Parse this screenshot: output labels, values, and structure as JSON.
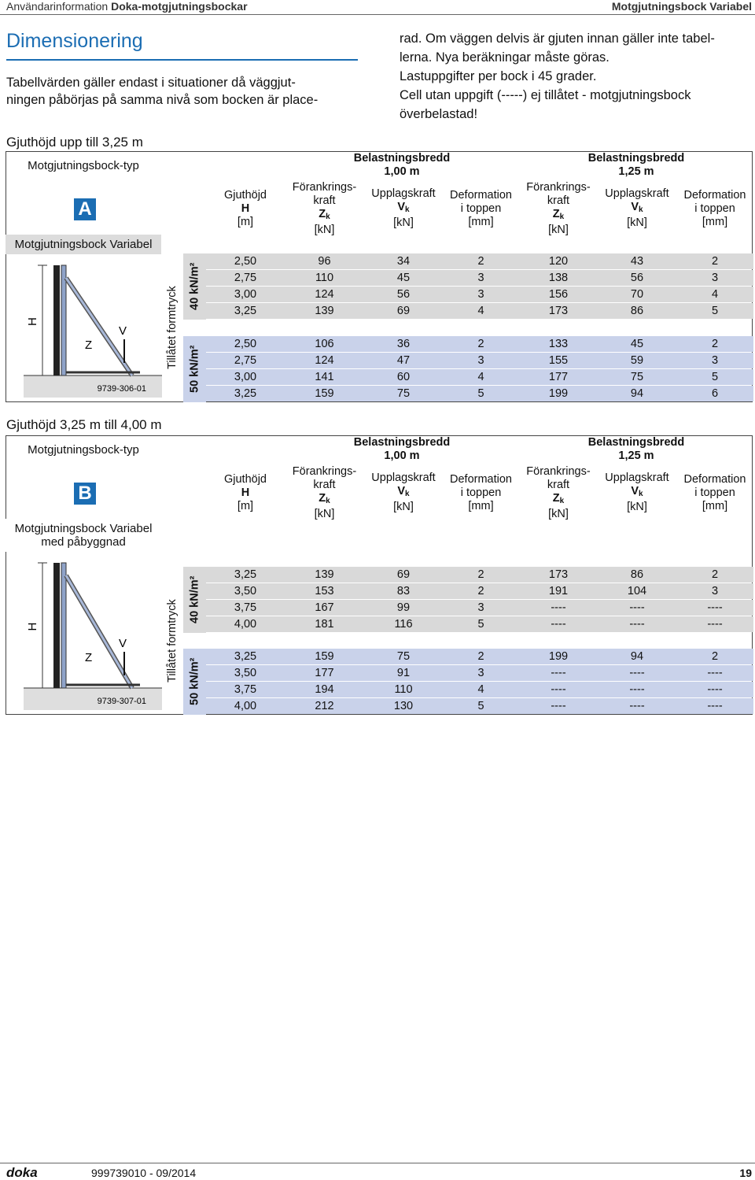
{
  "header": {
    "left_prefix": "Användarinformation",
    "left_bold": "Doka-motgjutningsbockar",
    "right": "Motgjutningsbock Variabel"
  },
  "title": "Dimensionering",
  "intro_left": [
    "Tabellvärden gäller endast i situationer då väggjut-",
    "ningen påbörjas på samma nivå som bocken är place-"
  ],
  "intro_right": [
    "rad. Om väggen delvis är gjuten innan gäller inte tabel-",
    "lerna. Nya beräkningar måste göras.",
    "Lastuppgifter per bock i 45 grader.",
    "Cell utan uppgift (-----) ej tillåtet - motgjutningsbock",
    "överbelastad!"
  ],
  "sections": [
    {
      "heading": "Gjuthöjd upp till 3,25 m",
      "type_label": "Motgjutningsbock-typ",
      "type_letter": "A",
      "type_name": [
        "Motgjutningsbock Variabel"
      ],
      "figure": {
        "h": "H",
        "z": "Z",
        "v": "V",
        "code": "9739-306-01"
      },
      "pressure_label": "Tillåtet formtryck",
      "height_header": [
        "Gjuthöjd",
        "H",
        "[m]"
      ],
      "widths": [
        {
          "label": "Belastningsbredd",
          "value": "1,00 m"
        },
        {
          "label": "Belastningsbredd",
          "value": "1,25 m"
        }
      ],
      "column_headers": [
        {
          "lines": [
            "Förankrings-",
            "kraft"
          ],
          "symbol": "Z",
          "sub": "k",
          "unit": "[kN]"
        },
        {
          "lines": [
            "Upplagskraft"
          ],
          "symbol": "V",
          "sub": "k",
          "unit": "[kN]"
        },
        {
          "lines": [
            "Deformation",
            "i toppen"
          ],
          "unit": "[mm]"
        }
      ],
      "groups": [
        {
          "pressure": "40 kN/m²",
          "rows": [
            [
              "2,50",
              "96",
              "34",
              "2",
              "120",
              "43",
              "2"
            ],
            [
              "2,75",
              "110",
              "45",
              "3",
              "138",
              "56",
              "3"
            ],
            [
              "3,00",
              "124",
              "56",
              "3",
              "156",
              "70",
              "4"
            ],
            [
              "3,25",
              "139",
              "69",
              "4",
              "173",
              "86",
              "5"
            ]
          ]
        },
        {
          "pressure": "50 kN/m²",
          "rows": [
            [
              "2,50",
              "106",
              "36",
              "2",
              "133",
              "45",
              "2"
            ],
            [
              "2,75",
              "124",
              "47",
              "3",
              "155",
              "59",
              "3"
            ],
            [
              "3,00",
              "141",
              "60",
              "4",
              "177",
              "75",
              "5"
            ],
            [
              "3,25",
              "159",
              "75",
              "5",
              "199",
              "94",
              "6"
            ]
          ]
        }
      ]
    },
    {
      "heading": "Gjuthöjd 3,25 m till 4,00 m",
      "type_label": "Motgjutningsbock-typ",
      "type_letter": "B",
      "type_name": [
        "Motgjutningsbock Variabel",
        "med påbyggnad"
      ],
      "figure": {
        "h": "H",
        "z": "Z",
        "v": "V",
        "code": "9739-307-01"
      },
      "pressure_label": "Tillåtet formtryck",
      "height_header": [
        "Gjuthöjd",
        "H",
        "[m]"
      ],
      "widths": [
        {
          "label": "Belastningsbredd",
          "value": "1,00 m"
        },
        {
          "label": "Belastningsbredd",
          "value": "1,25 m"
        }
      ],
      "column_headers": [
        {
          "lines": [
            "Förankrings-",
            "kraft"
          ],
          "symbol": "Z",
          "sub": "k",
          "unit": "[kN]"
        },
        {
          "lines": [
            "Upplagskraft"
          ],
          "symbol": "V",
          "sub": "k",
          "unit": "[kN]"
        },
        {
          "lines": [
            "Deformation",
            "i toppen"
          ],
          "unit": "[mm]"
        }
      ],
      "groups": [
        {
          "pressure": "40 kN/m²",
          "rows": [
            [
              "3,25",
              "139",
              "69",
              "2",
              "173",
              "86",
              "2"
            ],
            [
              "3,50",
              "153",
              "83",
              "2",
              "191",
              "104",
              "3"
            ],
            [
              "3,75",
              "167",
              "99",
              "3",
              "----",
              "----",
              "----"
            ],
            [
              "4,00",
              "181",
              "116",
              "5",
              "----",
              "----",
              "----"
            ]
          ]
        },
        {
          "pressure": "50 kN/m²",
          "rows": [
            [
              "3,25",
              "159",
              "75",
              "2",
              "199",
              "94",
              "2"
            ],
            [
              "3,50",
              "177",
              "91",
              "3",
              "----",
              "----",
              "----"
            ],
            [
              "3,75",
              "194",
              "110",
              "4",
              "----",
              "----",
              "----"
            ],
            [
              "4,00",
              "212",
              "130",
              "5",
              "----",
              "----",
              "----"
            ]
          ]
        }
      ]
    }
  ],
  "footer": {
    "logo": "doka",
    "doc": "999739010 - 09/2014",
    "page": "19"
  }
}
